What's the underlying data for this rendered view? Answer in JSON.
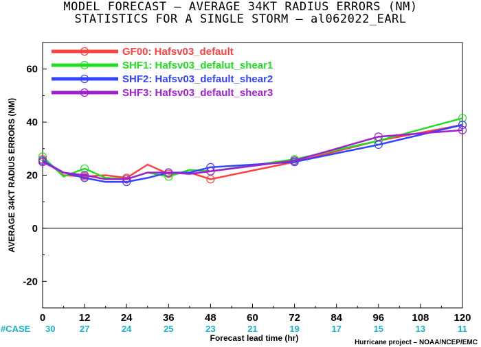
{
  "chart_data": {
    "type": "line",
    "title": "MODEL FORECAST – AVERAGE 34KT RADIUS ERRORS (NM)",
    "subtitle": "STATISTICS FOR A SINGLE STORM – al062022_EARL",
    "xlabel": "Forecast lead time (hr)",
    "ylabel": "AVERAGE 34KT RADIUS ERRORS (NM)",
    "xlim": [
      0,
      120
    ],
    "ylim": [
      -30,
      70
    ],
    "x_ticks": [
      "0",
      "12",
      "24",
      "36",
      "48",
      "60",
      "72",
      "84",
      "96",
      "108",
      "120"
    ],
    "y_ticks": [
      "-20",
      "0",
      "20",
      "40",
      "60"
    ],
    "x_values": [
      0,
      12,
      24,
      36,
      48,
      60,
      72,
      84,
      96,
      108,
      120
    ],
    "case_label": "#CASE",
    "cases": [
      "30",
      "27",
      "24",
      "25",
      "23",
      "21",
      "19",
      "17",
      "15",
      "13",
      "11"
    ],
    "credit": "Hurricane project – NOAA/NCEP/EMC",
    "legend_position": "top-left",
    "series": [
      {
        "name": "GF00: Hafsv03_default",
        "color": "#ff4040",
        "points": [
          [
            0,
            26
          ],
          [
            6,
            20
          ],
          [
            12,
            19.5
          ],
          [
            18,
            20
          ],
          [
            24,
            19
          ],
          [
            30,
            24
          ],
          [
            36,
            20.5
          ],
          [
            42,
            21
          ],
          [
            48,
            18.5
          ],
          [
            72,
            25
          ],
          [
            96,
            33
          ],
          [
            120,
            39
          ]
        ]
      },
      {
        "name": "SHF1: Hafsv03_defalut_shear1",
        "color": "#22dd22",
        "points": [
          [
            0,
            27
          ],
          [
            6,
            19.5
          ],
          [
            12,
            22.5
          ],
          [
            18,
            19
          ],
          [
            24,
            18.5
          ],
          [
            30,
            21
          ],
          [
            36,
            19.5
          ],
          [
            42,
            22
          ],
          [
            48,
            21.5
          ],
          [
            72,
            26
          ],
          [
            96,
            33
          ],
          [
            120,
            41.5
          ]
        ]
      },
      {
        "name": "SHF2: Hafsv03_default_shear2",
        "color": "#3344ff",
        "points": [
          [
            0,
            25.5
          ],
          [
            6,
            21
          ],
          [
            12,
            19
          ],
          [
            18,
            17.5
          ],
          [
            24,
            17.5
          ],
          [
            30,
            19
          ],
          [
            36,
            21
          ],
          [
            42,
            21
          ],
          [
            48,
            23
          ],
          [
            72,
            25
          ],
          [
            96,
            31.5
          ],
          [
            120,
            39
          ]
        ]
      },
      {
        "name": "SHF3: Hafsv03_default_shear3",
        "color": "#a020d0",
        "points": [
          [
            0,
            25
          ],
          [
            6,
            21
          ],
          [
            12,
            20
          ],
          [
            18,
            18.5
          ],
          [
            24,
            18.5
          ],
          [
            30,
            21
          ],
          [
            36,
            21
          ],
          [
            42,
            20.5
          ],
          [
            48,
            21.5
          ],
          [
            72,
            25.5
          ],
          [
            96,
            34.5
          ],
          [
            120,
            37
          ]
        ]
      }
    ]
  }
}
